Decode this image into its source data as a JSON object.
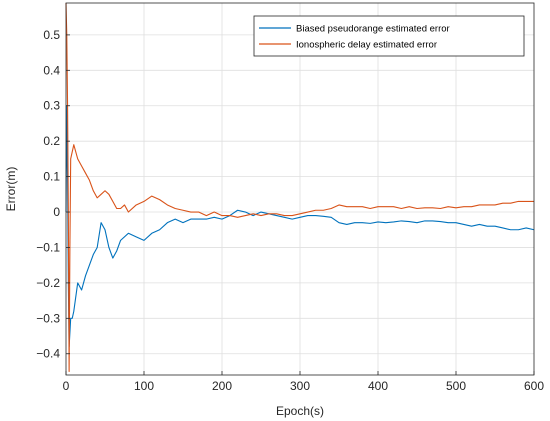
{
  "chart_data": {
    "type": "line",
    "title": "",
    "xlabel": "Epoch(s)",
    "ylabel": "Error(m)",
    "xlim": [
      0,
      600
    ],
    "ylim": [
      -0.46,
      0.59
    ],
    "x_ticks": [
      0,
      100,
      200,
      300,
      400,
      500,
      600
    ],
    "y_ticks": [
      -0.4,
      -0.3,
      -0.2,
      -0.1,
      0,
      0.1,
      0.2,
      0.3,
      0.4,
      0.5
    ],
    "x_tick_labels": [
      "0",
      "100",
      "200",
      "300",
      "400",
      "500",
      "600"
    ],
    "y_tick_labels": [
      "−0.4",
      "−0.3",
      "−0.2",
      "−0.1",
      "0",
      "0.1",
      "0.2",
      "0.3",
      "0.4",
      "0.5"
    ],
    "grid": true,
    "legend_position": "top-right",
    "series": [
      {
        "name": "Biased pseudorange estimated error",
        "color": "#0072BD",
        "x": [
          0,
          1,
          2,
          3,
          4,
          6,
          8,
          10,
          15,
          20,
          25,
          30,
          35,
          40,
          45,
          50,
          55,
          60,
          65,
          70,
          80,
          90,
          100,
          110,
          120,
          130,
          140,
          150,
          160,
          170,
          180,
          190,
          200,
          210,
          220,
          230,
          240,
          250,
          260,
          270,
          280,
          290,
          300,
          310,
          320,
          330,
          340,
          350,
          360,
          370,
          380,
          390,
          400,
          410,
          420,
          430,
          440,
          450,
          460,
          470,
          480,
          490,
          500,
          510,
          520,
          530,
          540,
          550,
          560,
          570,
          580,
          590,
          600
        ],
        "y": [
          0.0,
          0.3,
          0.1,
          -0.2,
          -0.38,
          -0.3,
          -0.3,
          -0.28,
          -0.2,
          -0.22,
          -0.18,
          -0.15,
          -0.12,
          -0.1,
          -0.03,
          -0.05,
          -0.1,
          -0.13,
          -0.11,
          -0.08,
          -0.06,
          -0.07,
          -0.08,
          -0.06,
          -0.05,
          -0.03,
          -0.02,
          -0.03,
          -0.02,
          -0.02,
          -0.02,
          -0.015,
          -0.02,
          -0.01,
          0.005,
          0.0,
          -0.01,
          0.0,
          -0.005,
          -0.01,
          -0.015,
          -0.02,
          -0.015,
          -0.01,
          -0.01,
          -0.012,
          -0.015,
          -0.03,
          -0.035,
          -0.03,
          -0.03,
          -0.032,
          -0.028,
          -0.03,
          -0.028,
          -0.025,
          -0.027,
          -0.03,
          -0.025,
          -0.025,
          -0.027,
          -0.03,
          -0.03,
          -0.035,
          -0.04,
          -0.035,
          -0.04,
          -0.04,
          -0.045,
          -0.05,
          -0.05,
          -0.045,
          -0.05
        ]
      },
      {
        "name": "Ionospheric delay estimated error",
        "color": "#D95319",
        "x": [
          0,
          1,
          2,
          3,
          4,
          5,
          6,
          8,
          10,
          15,
          20,
          25,
          30,
          35,
          40,
          45,
          50,
          55,
          60,
          65,
          70,
          75,
          80,
          90,
          100,
          110,
          120,
          130,
          140,
          150,
          160,
          170,
          180,
          190,
          200,
          210,
          220,
          230,
          240,
          250,
          260,
          270,
          280,
          290,
          300,
          310,
          320,
          330,
          340,
          350,
          360,
          370,
          380,
          390,
          400,
          410,
          420,
          430,
          440,
          450,
          460,
          470,
          480,
          490,
          500,
          510,
          520,
          530,
          540,
          550,
          560,
          570,
          580,
          590,
          600
        ],
        "y": [
          0.59,
          0.5,
          0.3,
          0.0,
          -0.45,
          -0.1,
          0.15,
          0.17,
          0.19,
          0.15,
          0.13,
          0.11,
          0.09,
          0.06,
          0.04,
          0.05,
          0.06,
          0.05,
          0.03,
          0.01,
          0.01,
          0.02,
          0.0,
          0.02,
          0.03,
          0.045,
          0.035,
          0.02,
          0.01,
          0.005,
          0.0,
          0.0,
          -0.01,
          0.0,
          -0.01,
          -0.01,
          -0.015,
          -0.01,
          -0.005,
          -0.01,
          -0.005,
          -0.005,
          -0.01,
          -0.01,
          -0.005,
          0.0,
          0.005,
          0.005,
          0.01,
          0.02,
          0.015,
          0.015,
          0.015,
          0.01,
          0.015,
          0.015,
          0.015,
          0.01,
          0.015,
          0.01,
          0.012,
          0.012,
          0.01,
          0.015,
          0.012,
          0.015,
          0.015,
          0.02,
          0.02,
          0.02,
          0.025,
          0.025,
          0.03,
          0.03,
          0.03
        ]
      }
    ]
  }
}
